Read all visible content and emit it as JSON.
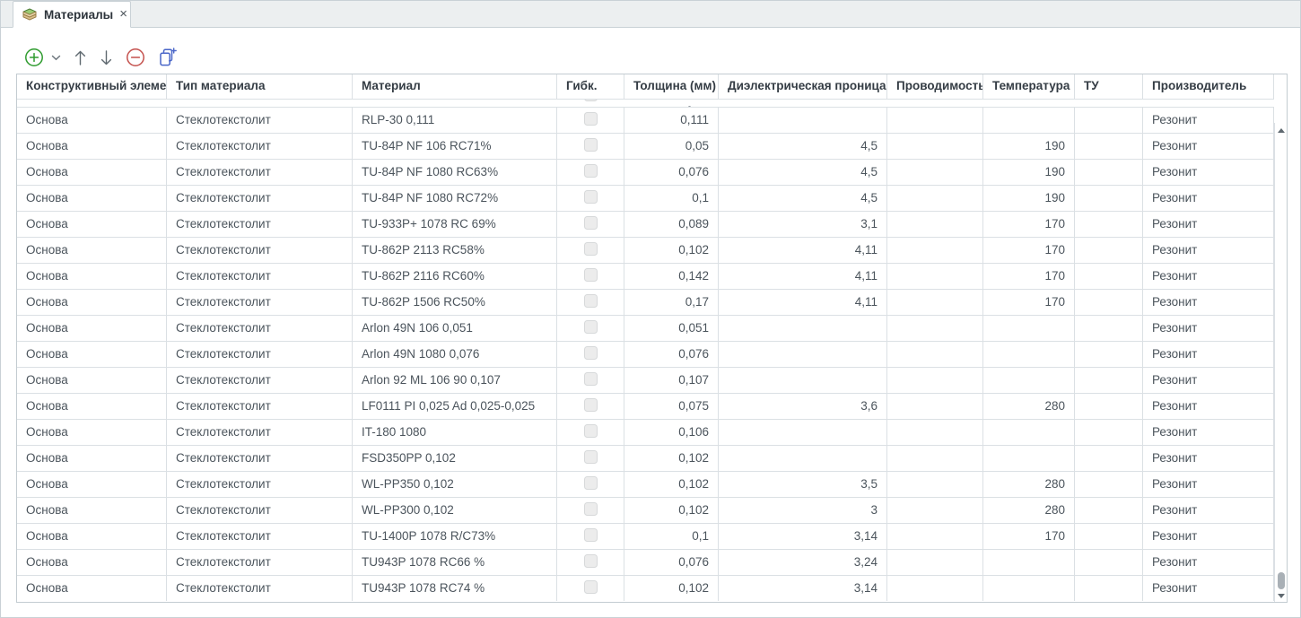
{
  "tab": {
    "title": "Материалы",
    "close_glyph": "×"
  },
  "toolbar": {
    "buttons": [
      "add",
      "add-menu",
      "move-up",
      "move-down",
      "remove",
      "copy-add"
    ]
  },
  "colors": {
    "accent-green": "#2e9b2e",
    "accent-red": "#c4514d",
    "accent-blue": "#4a66c8"
  },
  "table": {
    "columns": [
      {
        "key": "element",
        "label": "Конструктивный элеме...",
        "align": "left"
      },
      {
        "key": "type",
        "label": "Тип материала",
        "align": "left"
      },
      {
        "key": "material",
        "label": "Материал",
        "align": "left"
      },
      {
        "key": "flexible",
        "label": "Гибк.",
        "align": "center",
        "type": "checkbox"
      },
      {
        "key": "thickness",
        "label": "Толщина (мм)",
        "align": "right"
      },
      {
        "key": "dielectric",
        "label": "Диэлектрическая проница...",
        "align": "right"
      },
      {
        "key": "conductivity",
        "label": "Проводимость",
        "align": "left"
      },
      {
        "key": "temperature",
        "label": "Температура",
        "align": "right"
      },
      {
        "key": "tu",
        "label": "ТУ",
        "align": "left"
      },
      {
        "key": "manufacturer",
        "label": "Производитель",
        "align": "left"
      }
    ],
    "rows": [
      {
        "element": "Основа",
        "type": "Стеклотекстолит",
        "material": "RLP-30 0,111",
        "flexible": false,
        "thickness": "0,111",
        "dielectric": "",
        "conductivity": "",
        "temperature": "",
        "tu": "",
        "manufacturer": "Резонит"
      },
      {
        "element": "Основа",
        "type": "Стеклотекстолит",
        "material": "TU-84P NF 106 RC71%",
        "flexible": false,
        "thickness": "0,05",
        "dielectric": "4,5",
        "conductivity": "",
        "temperature": "190",
        "tu": "",
        "manufacturer": "Резонит"
      },
      {
        "element": "Основа",
        "type": "Стеклотекстолит",
        "material": "TU-84P NF 1080 RC63%",
        "flexible": false,
        "thickness": "0,076",
        "dielectric": "4,5",
        "conductivity": "",
        "temperature": "190",
        "tu": "",
        "manufacturer": "Резонит"
      },
      {
        "element": "Основа",
        "type": "Стеклотекстолит",
        "material": "TU-84P NF 1080 RC72%",
        "flexible": false,
        "thickness": "0,1",
        "dielectric": "4,5",
        "conductivity": "",
        "temperature": "190",
        "tu": "",
        "manufacturer": "Резонит"
      },
      {
        "element": "Основа",
        "type": "Стеклотекстолит",
        "material": "TU-933P+ 1078 RC 69%",
        "flexible": false,
        "thickness": "0,089",
        "dielectric": "3,1",
        "conductivity": "",
        "temperature": "170",
        "tu": "",
        "manufacturer": "Резонит"
      },
      {
        "element": "Основа",
        "type": "Стеклотекстолит",
        "material": "TU-862P 2113 RC58%",
        "flexible": false,
        "thickness": "0,102",
        "dielectric": "4,11",
        "conductivity": "",
        "temperature": "170",
        "tu": "",
        "manufacturer": "Резонит"
      },
      {
        "element": "Основа",
        "type": "Стеклотекстолит",
        "material": "TU-862P 2116 RC60%",
        "flexible": false,
        "thickness": "0,142",
        "dielectric": "4,11",
        "conductivity": "",
        "temperature": "170",
        "tu": "",
        "manufacturer": "Резонит"
      },
      {
        "element": "Основа",
        "type": "Стеклотекстолит",
        "material": "TU-862P 1506 RC50%",
        "flexible": false,
        "thickness": "0,17",
        "dielectric": "4,11",
        "conductivity": "",
        "temperature": "170",
        "tu": "",
        "manufacturer": "Резонит"
      },
      {
        "element": "Основа",
        "type": "Стеклотекстолит",
        "material": "Arlon 49N 106 0,051",
        "flexible": false,
        "thickness": "0,051",
        "dielectric": "",
        "conductivity": "",
        "temperature": "",
        "tu": "",
        "manufacturer": "Резонит"
      },
      {
        "element": "Основа",
        "type": "Стеклотекстолит",
        "material": "Arlon 49N 1080 0,076",
        "flexible": false,
        "thickness": "0,076",
        "dielectric": "",
        "conductivity": "",
        "temperature": "",
        "tu": "",
        "manufacturer": "Резонит"
      },
      {
        "element": "Основа",
        "type": "Стеклотекстолит",
        "material": "Arlon 92 ML 106 90 0,107",
        "flexible": false,
        "thickness": "0,107",
        "dielectric": "",
        "conductivity": "",
        "temperature": "",
        "tu": "",
        "manufacturer": "Резонит"
      },
      {
        "element": "Основа",
        "type": "Стеклотекстолит",
        "material": "LF0111 PI 0,025 Ad 0,025-0,025",
        "flexible": false,
        "thickness": "0,075",
        "dielectric": "3,6",
        "conductivity": "",
        "temperature": "280",
        "tu": "",
        "manufacturer": "Резонит"
      },
      {
        "element": "Основа",
        "type": "Стеклотекстолит",
        "material": "IT-180 1080",
        "flexible": false,
        "thickness": "0,106",
        "dielectric": "",
        "conductivity": "",
        "temperature": "",
        "tu": "",
        "manufacturer": "Резонит"
      },
      {
        "element": "Основа",
        "type": "Стеклотекстолит",
        "material": "FSD350PP 0,102",
        "flexible": false,
        "thickness": "0,102",
        "dielectric": "",
        "conductivity": "",
        "temperature": "",
        "tu": "",
        "manufacturer": "Резонит"
      },
      {
        "element": "Основа",
        "type": "Стеклотекстолит",
        "material": "WL-PP350 0,102",
        "flexible": false,
        "thickness": "0,102",
        "dielectric": "3,5",
        "conductivity": "",
        "temperature": "280",
        "tu": "",
        "manufacturer": "Резонит"
      },
      {
        "element": "Основа",
        "type": "Стеклотекстолит",
        "material": "WL-PP300 0,102",
        "flexible": false,
        "thickness": "0,102",
        "dielectric": "3",
        "conductivity": "",
        "temperature": "280",
        "tu": "",
        "manufacturer": "Резонит"
      },
      {
        "element": "Основа",
        "type": "Стеклотекстолит",
        "material": "TU-1400P 1078 R/C73%",
        "flexible": false,
        "thickness": "0,1",
        "dielectric": "3,14",
        "conductivity": "",
        "temperature": "170",
        "tu": "",
        "manufacturer": "Резонит"
      },
      {
        "element": "Основа",
        "type": "Стеклотекстолит",
        "material": "TU943P 1078 RC66 %",
        "flexible": false,
        "thickness": "0,076",
        "dielectric": "3,24",
        "conductivity": "",
        "temperature": "",
        "tu": "",
        "manufacturer": "Резонит"
      },
      {
        "element": "Основа",
        "type": "Стеклотекстолит",
        "material": "TU943P 1078 RC74 %",
        "flexible": false,
        "thickness": "0,102",
        "dielectric": "3,14",
        "conductivity": "",
        "temperature": "",
        "tu": "",
        "manufacturer": "Резонит"
      }
    ]
  }
}
